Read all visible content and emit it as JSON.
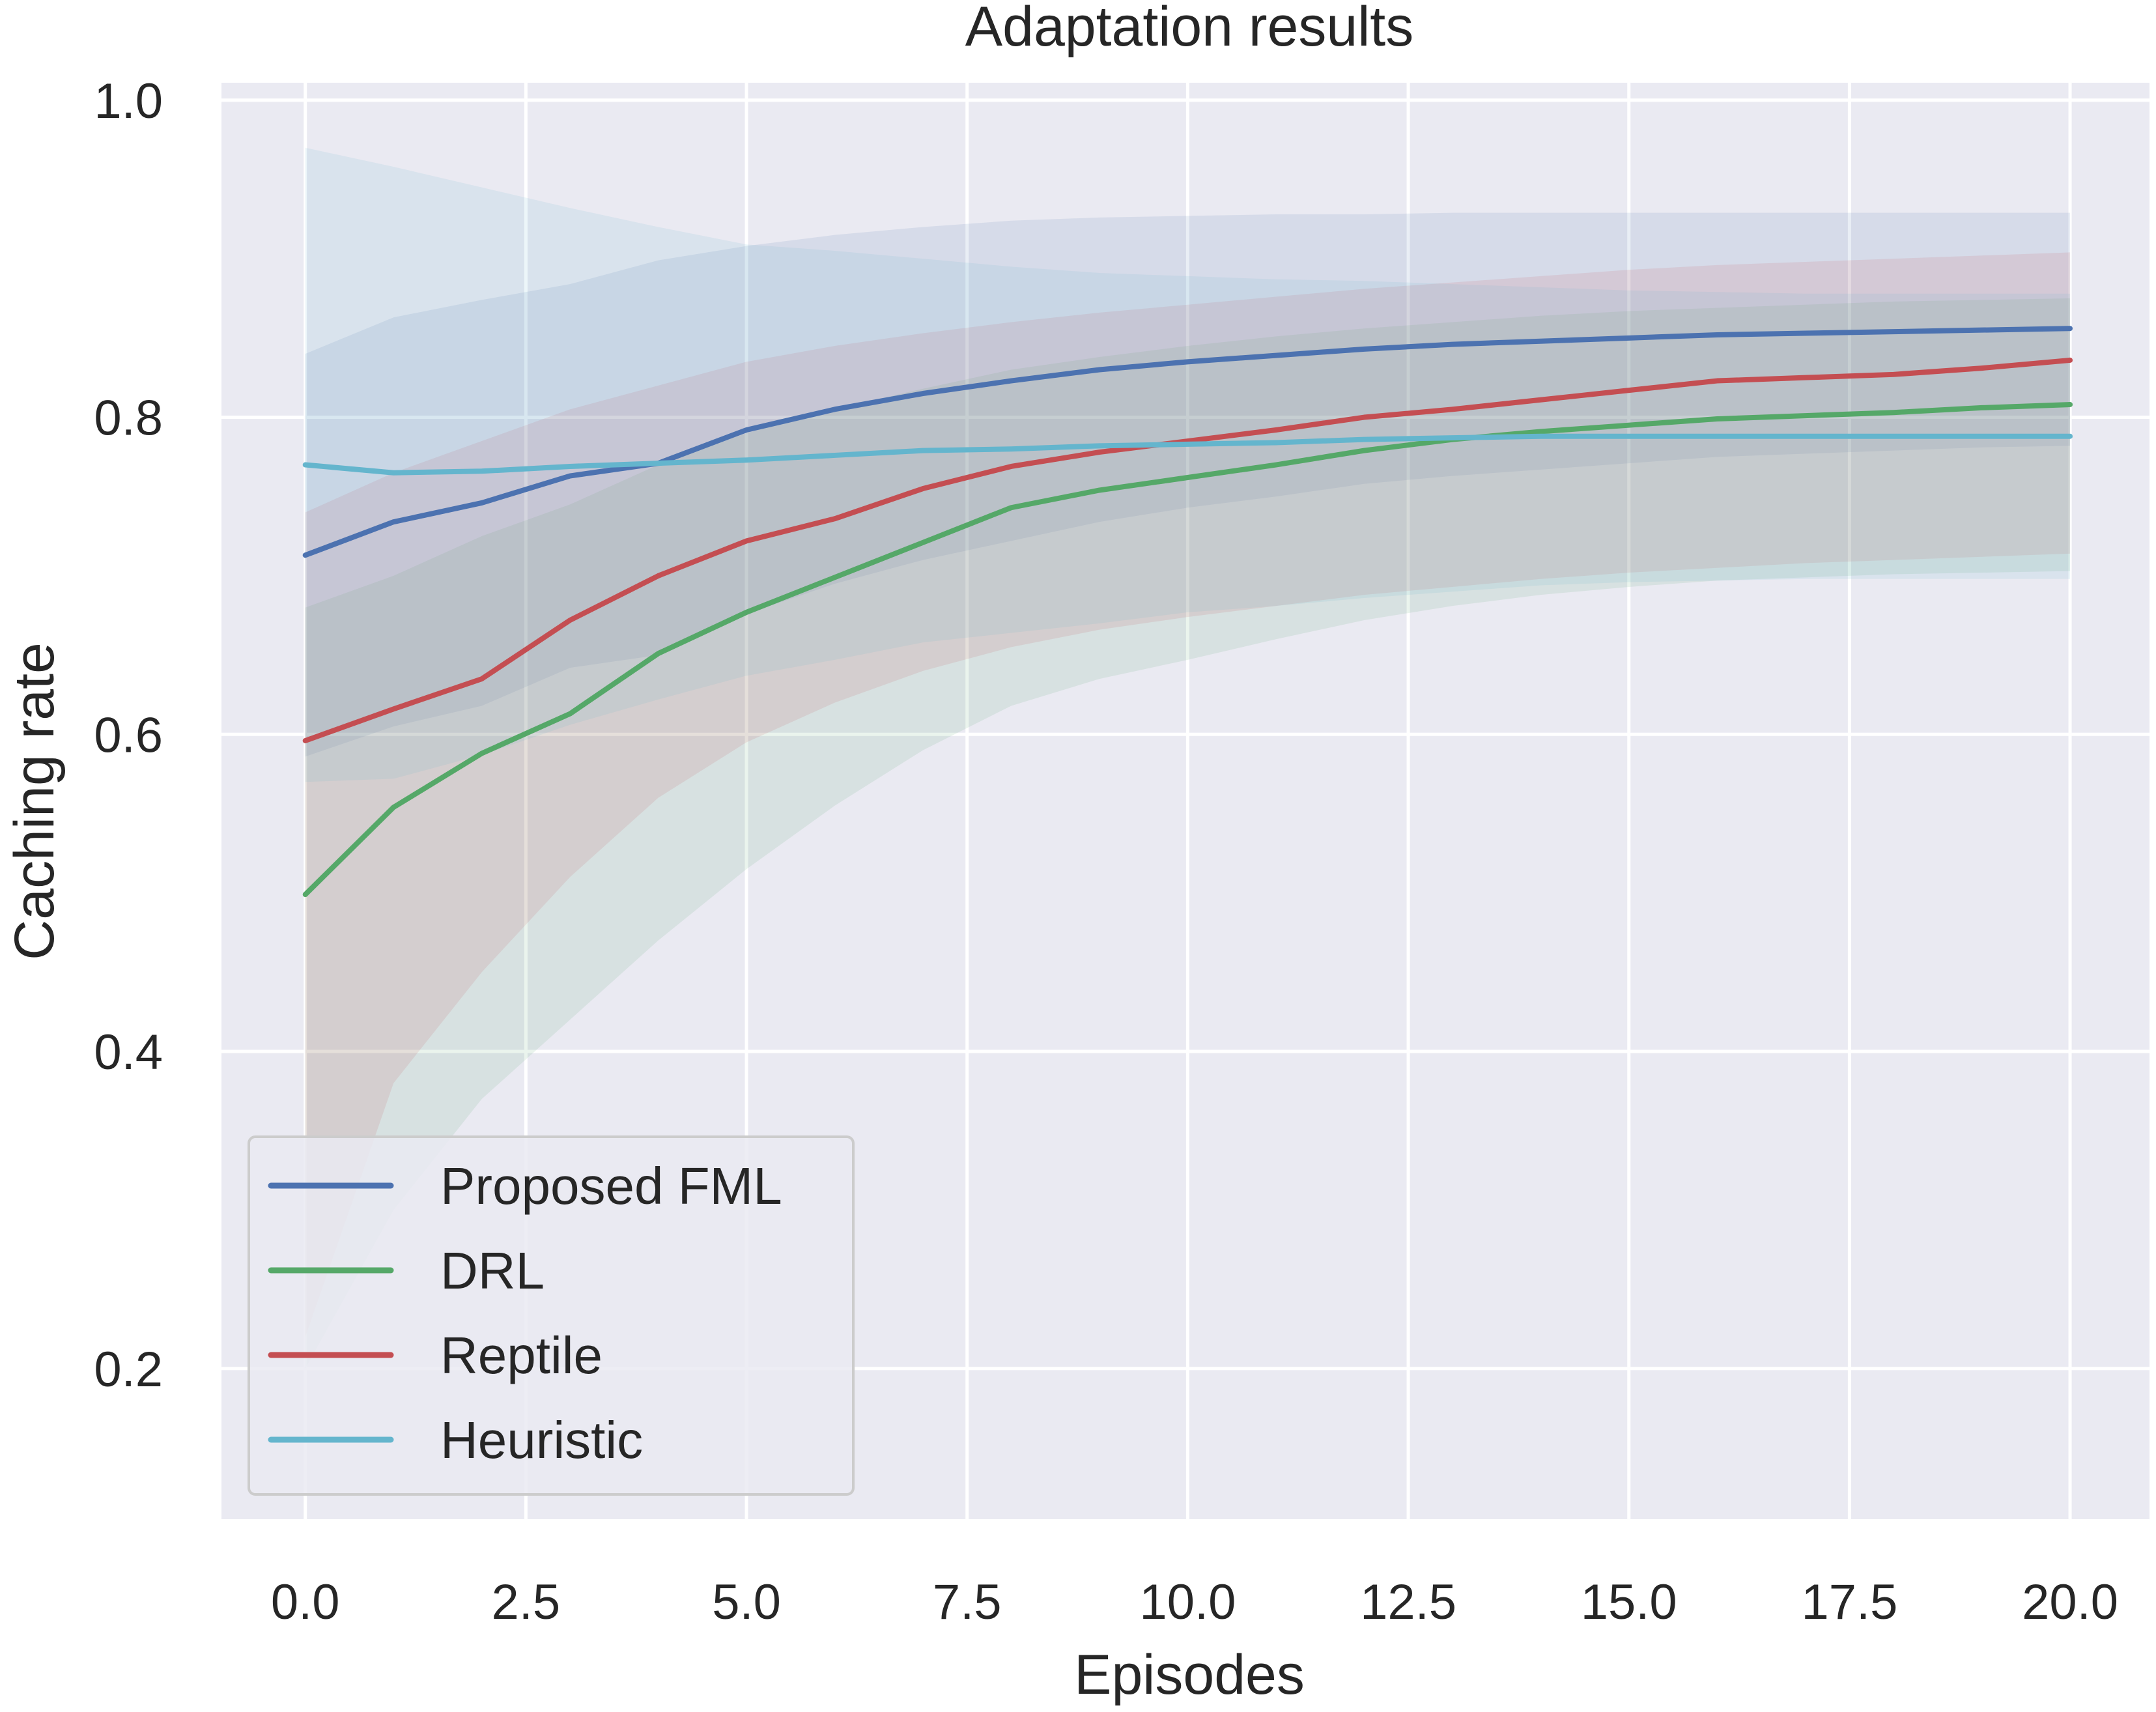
{
  "chart_data": {
    "type": "line",
    "title": "Adaptation results",
    "xlabel": "Episodes",
    "ylabel": "Caching rate",
    "xlim": [
      -0.95,
      20.9
    ],
    "ylim": [
      0.105,
      1.011
    ],
    "xticks": [
      0,
      2.5,
      5,
      7.5,
      10,
      12.5,
      15,
      17.5,
      20
    ],
    "xtick_labels": [
      "0.0",
      "2.5",
      "5.0",
      "7.5",
      "10.0",
      "12.5",
      "15.0",
      "17.5",
      "20.0"
    ],
    "yticks": [
      0.2,
      0.4,
      0.6,
      0.8,
      1.0
    ],
    "ytick_labels": [
      "0.2",
      "0.4",
      "0.6",
      "0.8",
      "1.0"
    ],
    "grid": true,
    "legend_position": "lower-left",
    "x": [
      0,
      1,
      2,
      3,
      4,
      5,
      6,
      7,
      8,
      9,
      10,
      11,
      12,
      13,
      14,
      15,
      16,
      17,
      18,
      19,
      20
    ],
    "series": [
      {
        "name": "Proposed FML",
        "color": "#4C72B0",
        "values": [
          0.713,
          0.734,
          0.746,
          0.763,
          0.771,
          0.792,
          0.805,
          0.815,
          0.823,
          0.83,
          0.835,
          0.839,
          0.843,
          0.846,
          0.848,
          0.85,
          0.852,
          0.853,
          0.854,
          0.855,
          0.856
        ],
        "upper": [
          0.84,
          0.863,
          0.874,
          0.884,
          0.899,
          0.908,
          0.915,
          0.92,
          0.924,
          0.926,
          0.927,
          0.928,
          0.928,
          0.929,
          0.929,
          0.929,
          0.929,
          0.929,
          0.929,
          0.929,
          0.929
        ],
        "lower": [
          0.586,
          0.605,
          0.618,
          0.642,
          0.65,
          0.676,
          0.695,
          0.71,
          0.722,
          0.734,
          0.743,
          0.75,
          0.758,
          0.763,
          0.767,
          0.771,
          0.775,
          0.777,
          0.779,
          0.781,
          0.782
        ]
      },
      {
        "name": "DRL",
        "color": "#55A868",
        "values": [
          0.499,
          0.554,
          0.588,
          0.613,
          0.651,
          0.677,
          0.699,
          0.721,
          0.743,
          0.754,
          0.762,
          0.77,
          0.779,
          0.786,
          0.791,
          0.795,
          0.799,
          0.801,
          0.803,
          0.806,
          0.808
        ],
        "upper": [
          0.68,
          0.7,
          0.725,
          0.745,
          0.77,
          0.79,
          0.805,
          0.818,
          0.83,
          0.838,
          0.845,
          0.851,
          0.856,
          0.86,
          0.864,
          0.867,
          0.869,
          0.871,
          0.873,
          0.874,
          0.875
        ],
        "lower": [
          0.2,
          0.3,
          0.37,
          0.42,
          0.47,
          0.515,
          0.555,
          0.59,
          0.618,
          0.635,
          0.647,
          0.66,
          0.672,
          0.681,
          0.688,
          0.693,
          0.697,
          0.699,
          0.701,
          0.702,
          0.703
        ]
      },
      {
        "name": "Reptile",
        "color": "#C44E52",
        "values": [
          0.596,
          0.616,
          0.635,
          0.672,
          0.7,
          0.722,
          0.736,
          0.755,
          0.769,
          0.778,
          0.785,
          0.792,
          0.8,
          0.805,
          0.811,
          0.817,
          0.823,
          0.825,
          0.827,
          0.831,
          0.836
        ],
        "upper": [
          0.74,
          0.765,
          0.785,
          0.805,
          0.82,
          0.835,
          0.845,
          0.853,
          0.86,
          0.866,
          0.871,
          0.876,
          0.881,
          0.885,
          0.889,
          0.893,
          0.896,
          0.898,
          0.9,
          0.902,
          0.904
        ],
        "lower": [
          0.22,
          0.38,
          0.45,
          0.51,
          0.56,
          0.595,
          0.62,
          0.64,
          0.655,
          0.666,
          0.674,
          0.681,
          0.688,
          0.693,
          0.698,
          0.702,
          0.705,
          0.708,
          0.71,
          0.712,
          0.714
        ]
      },
      {
        "name": "Heuristic",
        "color": "#64B5CD",
        "values": [
          0.77,
          0.765,
          0.766,
          0.769,
          0.771,
          0.773,
          0.776,
          0.779,
          0.78,
          0.782,
          0.783,
          0.784,
          0.786,
          0.787,
          0.788,
          0.788,
          0.788,
          0.788,
          0.788,
          0.788,
          0.788
        ],
        "upper": [
          0.97,
          0.958,
          0.945,
          0.932,
          0.92,
          0.909,
          0.905,
          0.9,
          0.895,
          0.891,
          0.889,
          0.887,
          0.886,
          0.884,
          0.882,
          0.88,
          0.879,
          0.878,
          0.878,
          0.878,
          0.878
        ],
        "lower": [
          0.57,
          0.572,
          0.587,
          0.606,
          0.622,
          0.637,
          0.647,
          0.658,
          0.664,
          0.67,
          0.677,
          0.681,
          0.686,
          0.69,
          0.694,
          0.696,
          0.697,
          0.698,
          0.698,
          0.698,
          0.698
        ]
      }
    ]
  },
  "colors": {
    "plot_background": "#EAEAF2",
    "grid": "#FFFFFF",
    "text": "#262626"
  }
}
